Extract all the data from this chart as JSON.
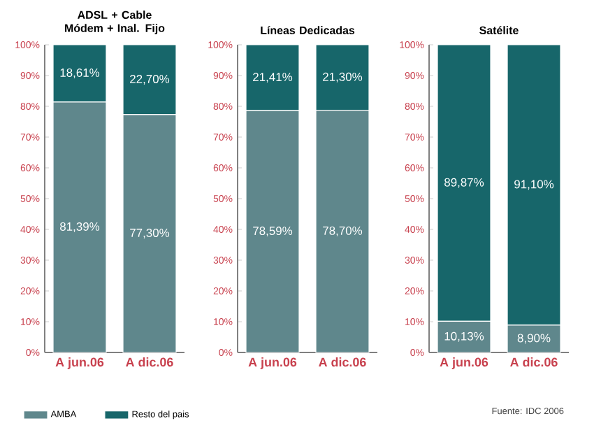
{
  "chart_data": [
    {
      "type": "bar",
      "stacked": true,
      "title": "ADSL + Cable Módem + Inal. Fijo",
      "categories": [
        "A jun.06",
        "A dic.06"
      ],
      "legend": "bottom",
      "series": [
        {
          "name": "AMBA",
          "color": "#5f878c",
          "values": [
            81.39,
            77.3
          ],
          "value_labels": [
            "81,39%",
            "77,30%"
          ]
        },
        {
          "name": "Resto del pais",
          "color": "#17666a",
          "values": [
            18.61,
            22.7
          ],
          "value_labels": [
            "18,61%",
            "22,70%"
          ]
        }
      ],
      "ylim": [
        0,
        100
      ],
      "yticks": [
        {
          "value": 0,
          "label": "0%"
        },
        {
          "value": 10,
          "label": "10%"
        },
        {
          "value": 20,
          "label": "20%"
        },
        {
          "value": 30,
          "label": "30%"
        },
        {
          "value": 40,
          "label": "40%"
        },
        {
          "value": 50,
          "label": "50%"
        },
        {
          "value": 60,
          "label": "60%"
        },
        {
          "value": 70,
          "label": "70%"
        },
        {
          "value": 80,
          "label": "80%"
        },
        {
          "value": 90,
          "label": "90%"
        },
        {
          "value": 100,
          "label": "100%"
        }
      ]
    },
    {
      "type": "bar",
      "stacked": true,
      "title": "Líneas Dedicadas",
      "categories": [
        "A jun.06",
        "A dic.06"
      ],
      "series": [
        {
          "color": "#5f878c",
          "values": [
            78.59,
            78.7
          ],
          "value_labels": [
            "78,59%",
            "78,70%"
          ]
        },
        {
          "color": "#17666a",
          "values": [
            21.41,
            21.3
          ],
          "value_labels": [
            "21,41%",
            "21,30%"
          ]
        }
      ],
      "ylim": [
        0,
        100
      ],
      "yticks": [
        {
          "value": 0,
          "label": "0%"
        },
        {
          "value": 10,
          "label": "10%"
        },
        {
          "value": 20,
          "label": "20%"
        },
        {
          "value": 30,
          "label": "30%"
        },
        {
          "value": 40,
          "label": "40%"
        },
        {
          "value": 50,
          "label": "50%"
        },
        {
          "value": 60,
          "label": "60%"
        },
        {
          "value": 70,
          "label": "70%"
        },
        {
          "value": 80,
          "label": "80%"
        },
        {
          "value": 90,
          "label": "90%"
        },
        {
          "value": 100,
          "label": "100%"
        }
      ]
    },
    {
      "type": "bar",
      "stacked": true,
      "title": "Satélite",
      "categories": [
        "A jun.06",
        "A dic.06"
      ],
      "annotations": [
        "Fuente: IDC 2006"
      ],
      "series": [
        {
          "color": "#5f878c",
          "values": [
            10.13,
            8.9
          ],
          "value_labels": [
            "10,13%",
            "8,90%"
          ]
        },
        {
          "color": "#17666a",
          "values": [
            89.87,
            91.1
          ],
          "value_labels": [
            "89,87%",
            "91,10%"
          ]
        }
      ],
      "ylim": [
        0,
        100
      ],
      "yticks": [
        {
          "value": 0,
          "label": "0%"
        },
        {
          "value": 10,
          "label": "10%"
        },
        {
          "value": 20,
          "label": "20%"
        },
        {
          "value": 30,
          "label": "30%"
        },
        {
          "value": 40,
          "label": "40%"
        },
        {
          "value": 50,
          "label": "50%"
        },
        {
          "value": 60,
          "label": "60%"
        },
        {
          "value": 70,
          "label": "70%"
        },
        {
          "value": 80,
          "label": "80%"
        },
        {
          "value": 90,
          "label": "90%"
        },
        {
          "value": 100,
          "label": "100%"
        }
      ]
    }
  ]
}
